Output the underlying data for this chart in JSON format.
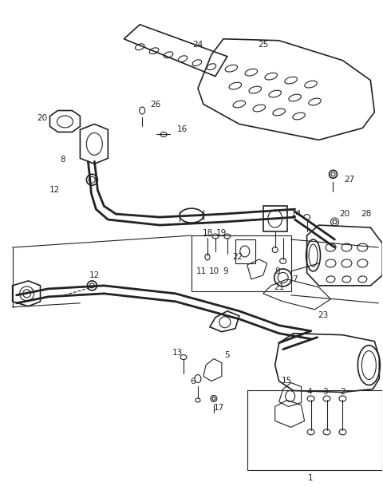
{
  "bg_color": "#ffffff",
  "line_color": "#222222",
  "fig_width": 4.8,
  "fig_height": 6.24,
  "dpi": 100
}
